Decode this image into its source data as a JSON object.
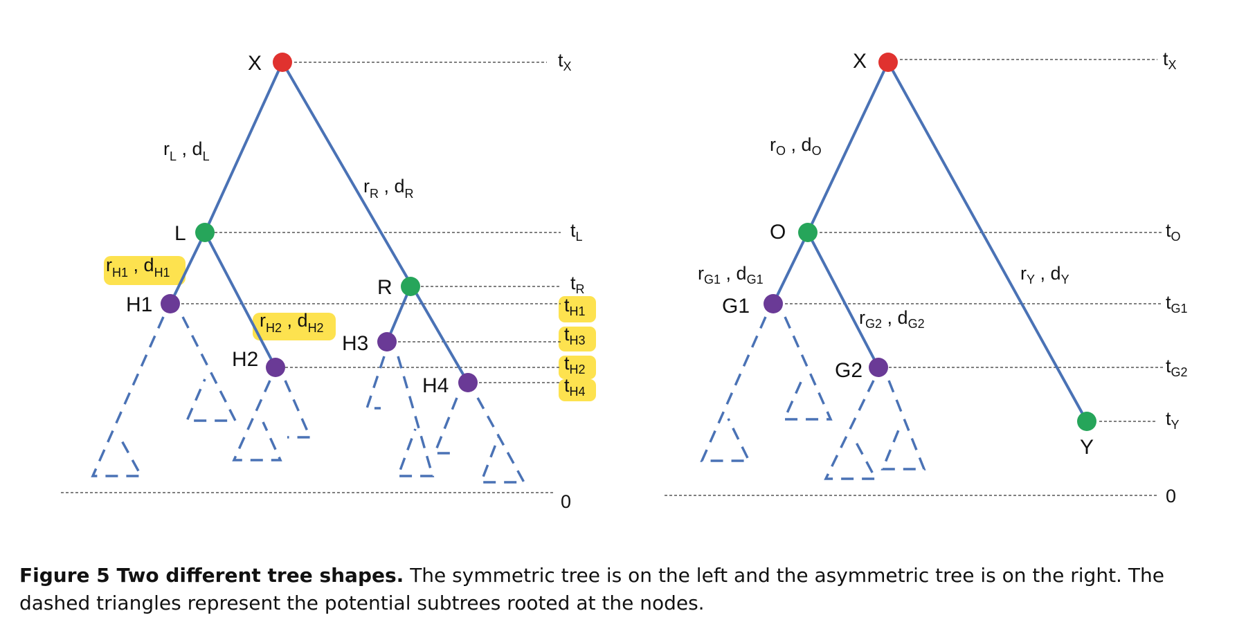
{
  "caption": {
    "lead": "Figure 5  Two different tree shapes.",
    "text": " The symmetric tree is on the left and the asymmetric tree is on the right. The dashed triangles represent the potential subtrees rooted at the nodes."
  },
  "colors": {
    "root_node": "#e0322f",
    "internal_node": "#26a55a",
    "leaf_node": "#6a3a96",
    "edge": "#4a72b5",
    "highlight": "#fde24f"
  },
  "left_tree": {
    "nodes": {
      "X": "X",
      "L": "L",
      "R": "R",
      "H1": "H1",
      "H2": "H2",
      "H3": "H3",
      "H4": "H4"
    },
    "edge_labels": {
      "XL": {
        "r": "r",
        "r_sub": "L",
        "d": "d",
        "d_sub": "L"
      },
      "XR": {
        "r": "r",
        "r_sub": "R",
        "d": "d",
        "d_sub": "R"
      },
      "LH1": {
        "r": "r",
        "r_sub": "H1",
        "d": "d",
        "d_sub": "H1"
      },
      "LH2": {
        "r": "r",
        "r_sub": "H2",
        "d": "d",
        "d_sub": "H2"
      }
    },
    "times": [
      {
        "base": "t",
        "sub": "X"
      },
      {
        "base": "t",
        "sub": "L"
      },
      {
        "base": "t",
        "sub": "R"
      },
      {
        "base": "t",
        "sub": "H1"
      },
      {
        "base": "t",
        "sub": "H3"
      },
      {
        "base": "t",
        "sub": "H2"
      },
      {
        "base": "t",
        "sub": "H4"
      },
      {
        "base": "0",
        "sub": ""
      }
    ]
  },
  "right_tree": {
    "nodes": {
      "X": "X",
      "O": "O",
      "Y": "Y",
      "G1": "G1",
      "G2": "G2"
    },
    "edge_labels": {
      "XO": {
        "r": "r",
        "r_sub": "O",
        "d": "d",
        "d_sub": "O"
      },
      "OG1": {
        "r": "r",
        "r_sub": "G1",
        "d": "d",
        "d_sub": "G1"
      },
      "OG2": {
        "r": "r",
        "r_sub": "G2",
        "d": "d",
        "d_sub": "G2"
      },
      "XY": {
        "r": "r",
        "r_sub": "Y",
        "d": "d",
        "d_sub": "Y"
      }
    },
    "times": [
      {
        "base": "t",
        "sub": "X"
      },
      {
        "base": "t",
        "sub": "O"
      },
      {
        "base": "t",
        "sub": "G1"
      },
      {
        "base": "t",
        "sub": "G2"
      },
      {
        "base": "t",
        "sub": "Y"
      },
      {
        "base": "0",
        "sub": ""
      }
    ]
  }
}
